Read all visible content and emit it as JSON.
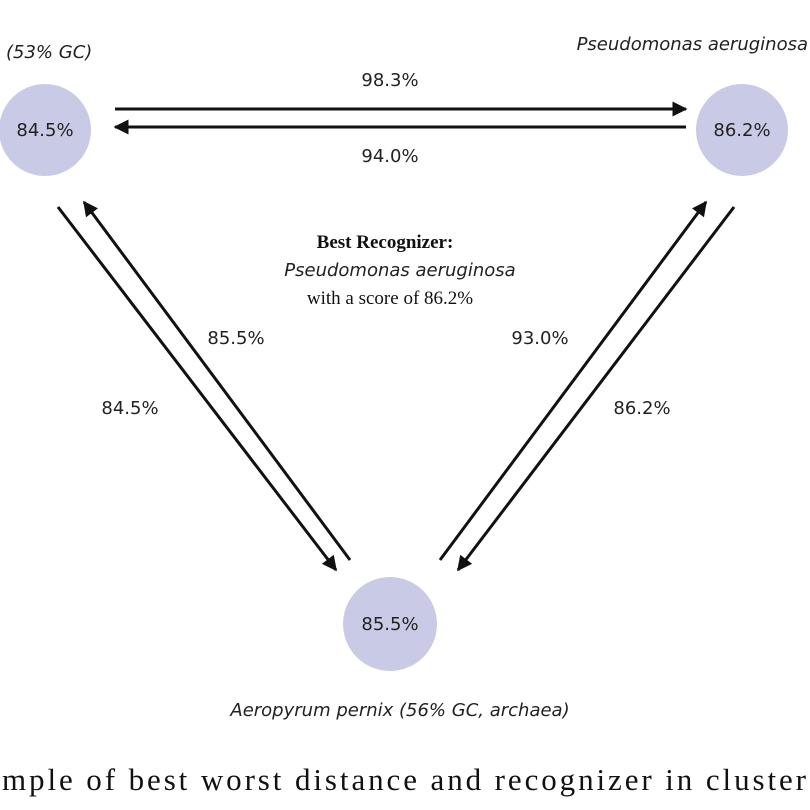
{
  "nodes": [
    {
      "label": "(53% GC)",
      "score": "84.5%"
    },
    {
      "label": "Pseudomonas aeruginosa",
      "score": "86.2%"
    },
    {
      "label": "Aeropyrum pernix (56% GC, archaea)",
      "score": "85.5%"
    }
  ],
  "edges": [
    {
      "label": "98.3%"
    },
    {
      "label": "94.0%"
    },
    {
      "label": "85.5%"
    },
    {
      "label": "84.5%"
    },
    {
      "label": "93.0%"
    },
    {
      "label": "86.2%"
    }
  ],
  "annotation": {
    "title": "Best Recognizer:",
    "organism": "Pseudomonas aeruginosa",
    "score_text": "with a score of 86.2%"
  },
  "caption": "mple of best worst distance and recognizer in cluster"
}
